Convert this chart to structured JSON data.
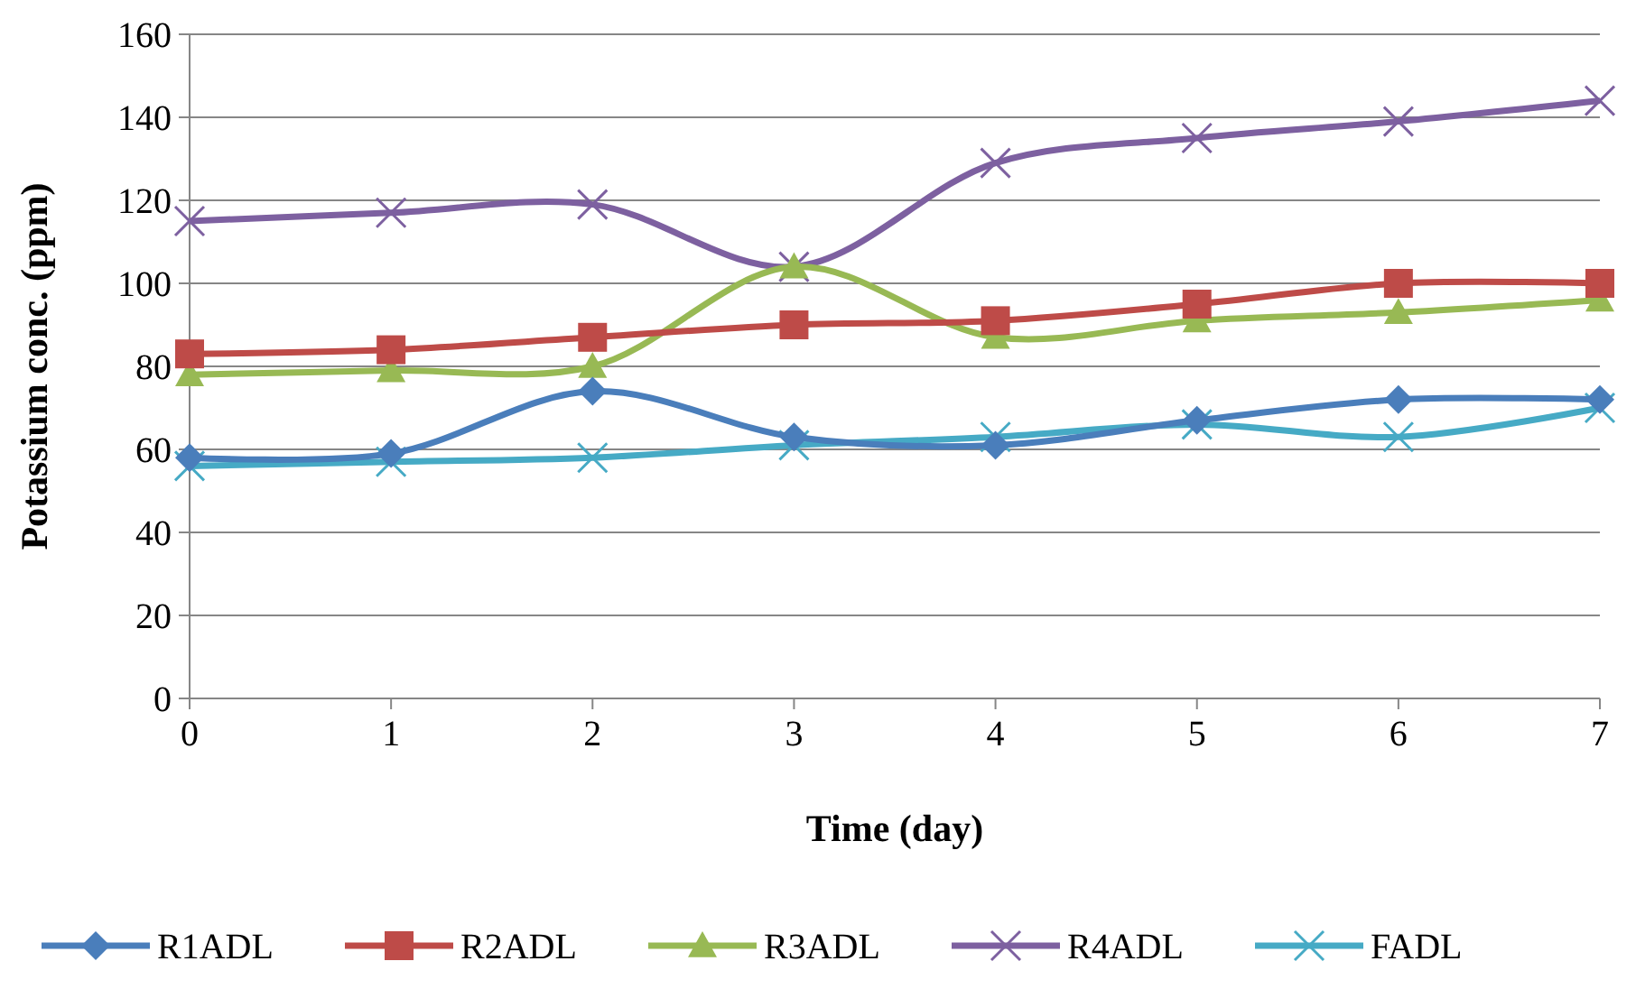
{
  "chart_data": {
    "type": "line",
    "xlabel": "Time (day)",
    "ylabel": "Potassium conc. (ppm)",
    "x": [
      0,
      1,
      2,
      3,
      4,
      5,
      6,
      7
    ],
    "xlim": [
      0,
      7
    ],
    "xticks": [
      0,
      1,
      2,
      3,
      4,
      5,
      6,
      7
    ],
    "ylim": [
      0,
      160
    ],
    "yticks": [
      0,
      20,
      40,
      60,
      80,
      100,
      120,
      140,
      160
    ],
    "grid": "y",
    "legend": "bottom",
    "series": [
      {
        "name": "R1ADL",
        "color": "#4a7ebb",
        "marker": "diamond",
        "values": [
          58,
          59,
          74,
          63,
          61,
          67,
          72,
          72
        ]
      },
      {
        "name": "R2ADL",
        "color": "#be4b48",
        "marker": "square",
        "values": [
          83,
          84,
          87,
          90,
          91,
          95,
          100,
          100
        ]
      },
      {
        "name": "R3ADL",
        "color": "#98b954",
        "marker": "triangle",
        "values": [
          78,
          79,
          80,
          104,
          87,
          91,
          93,
          96
        ]
      },
      {
        "name": "R4ADL",
        "color": "#7d60a0",
        "marker": "cross",
        "values": [
          115,
          117,
          119,
          104,
          129,
          135,
          139,
          144
        ]
      },
      {
        "name": "FADL",
        "color": "#46aac5",
        "marker": "cross",
        "values": [
          56,
          57,
          58,
          61,
          63,
          66,
          63,
          70
        ]
      }
    ]
  }
}
